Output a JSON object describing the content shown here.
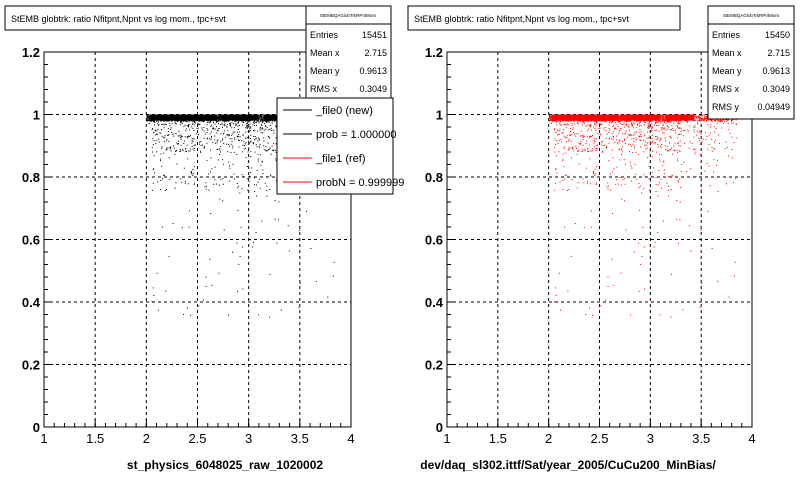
{
  "chart_data": [
    {
      "type": "scatter",
      "title": "StEMB globtrk: ratio Nfitpnt,Npnt vs log mom., tpc+svt",
      "stats_header": "StEMBQAGlobTrkRPntMom",
      "stats": [
        {
          "label": "Entries",
          "value": "15451"
        },
        {
          "label": "Mean x",
          "value": "2.715"
        },
        {
          "label": "Mean y",
          "value": "0.9613"
        },
        {
          "label": "RMS x",
          "value": "0.3049"
        }
      ],
      "xlabel": "st_physics_6048025_raw_1020002",
      "ylabel": "",
      "xlim": [
        1,
        4
      ],
      "ylim": [
        0,
        1.2
      ],
      "x_ticks": [
        "1",
        "1.5",
        "2",
        "2.5",
        "3",
        "3.5",
        "4"
      ],
      "y_ticks": [
        "0",
        "0.2",
        "0.4",
        "0.6",
        "0.8",
        "1",
        "1.2"
      ],
      "grid": true,
      "marker_color": "#000000",
      "legend": {
        "placement": "top-right",
        "entries": [
          {
            "label": "_file0 (new)",
            "color": "#000000"
          },
          {
            "label": "prob = 1.000000",
            "color": "#000000"
          },
          {
            "label": "_file1 (ref)",
            "color": "#ff0000"
          },
          {
            "label": "probN = 0.999999",
            "color": "#ff0000"
          }
        ]
      },
      "distribution": {
        "x_min": 2.0,
        "x_max": 3.85,
        "dense_y_min": 0.95,
        "dense_y_max": 1.0
      }
    },
    {
      "type": "scatter",
      "title": "StEMB globtrk: ratio Nfitpnt,Npnt vs log mom., tpc+svt",
      "stats_header": "StEMBQAGlobTrkRPntMom",
      "stats": [
        {
          "label": "Entries",
          "value": "15450"
        },
        {
          "label": "Mean x",
          "value": "2.715"
        },
        {
          "label": "Mean y",
          "value": "0.9613"
        },
        {
          "label": "RMS x",
          "value": "0.3049"
        },
        {
          "label": "RMS y",
          "value": "0.04949"
        }
      ],
      "xlabel": "dev/daq_sl302.ittf/Sat/year_2005/CuCu200_MinBias/",
      "ylabel": "",
      "xlim": [
        1,
        4
      ],
      "ylim": [
        0,
        1.2
      ],
      "x_ticks": [
        "1",
        "1.5",
        "2",
        "2.5",
        "3",
        "3.5",
        "4"
      ],
      "y_ticks": [
        "0",
        "0.2",
        "0.4",
        "0.6",
        "0.8",
        "1",
        "1.2"
      ],
      "grid": true,
      "marker_color": "#ff0000",
      "distribution": {
        "x_min": 2.0,
        "x_max": 3.85,
        "dense_y_min": 0.95,
        "dense_y_max": 1.0
      }
    }
  ]
}
